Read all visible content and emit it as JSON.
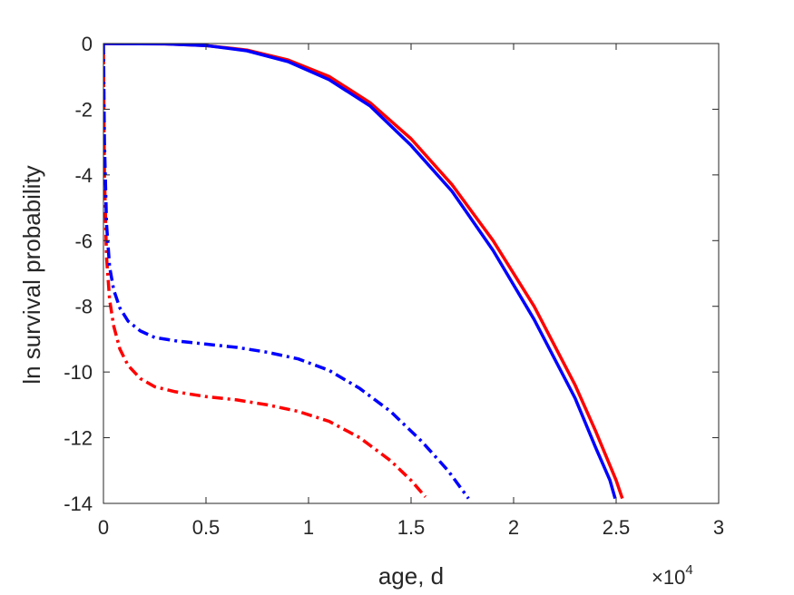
{
  "chart_data": {
    "type": "line",
    "xlabel": "age, d",
    "ylabel": "ln survival probability",
    "x_exponent_label": "×10",
    "x_exponent_power": "4",
    "xlim": [
      0,
      30000
    ],
    "ylim": [
      -14,
      0
    ],
    "x_tick_values": [
      0,
      5000,
      10000,
      15000,
      20000,
      25000,
      30000
    ],
    "x_tick_labels": [
      "0",
      "0.5",
      "1",
      "1.5",
      "2",
      "2.5",
      "3"
    ],
    "y_tick_values": [
      0,
      -2,
      -4,
      -6,
      -8,
      -10,
      -12,
      -14
    ],
    "y_tick_labels": [
      "0",
      "-2",
      "-4",
      "-6",
      "-8",
      "-10",
      "-12",
      "-14"
    ],
    "grid": false,
    "series": [
      {
        "color": "#ff0000",
        "style": "solid",
        "x": [
          0,
          3000,
          5000,
          7000,
          9000,
          11000,
          13000,
          15000,
          17000,
          19000,
          21000,
          23000,
          24000,
          25000,
          25300
        ],
        "y": [
          0,
          -0.01,
          -0.06,
          -0.2,
          -0.5,
          -1.0,
          -1.8,
          -2.9,
          -4.3,
          -6.0,
          -8.0,
          -10.4,
          -11.8,
          -13.3,
          -13.85
        ]
      },
      {
        "color": "#0000ff",
        "style": "solid",
        "x": [
          0,
          3000,
          5000,
          7000,
          9000,
          11000,
          13000,
          15000,
          17000,
          19000,
          21000,
          23000,
          24000,
          24700,
          24950
        ],
        "y": [
          0,
          -0.01,
          -0.06,
          -0.22,
          -0.55,
          -1.1,
          -1.9,
          -3.1,
          -4.5,
          -6.3,
          -8.4,
          -10.8,
          -12.3,
          -13.3,
          -13.85
        ]
      },
      {
        "color": "#ff0000",
        "style": "dashdot",
        "x": [
          0,
          50,
          150,
          300,
          500,
          800,
          1200,
          1800,
          2500,
          3500,
          5000,
          6500,
          8000,
          9500,
          11000,
          12500,
          14000,
          15000,
          15700
        ],
        "y": [
          -0.3,
          -4.0,
          -6.5,
          -7.8,
          -8.6,
          -9.3,
          -9.8,
          -10.2,
          -10.45,
          -10.6,
          -10.75,
          -10.85,
          -11.0,
          -11.2,
          -11.5,
          -12.0,
          -12.7,
          -13.3,
          -13.8
        ]
      },
      {
        "color": "#0000ff",
        "style": "dashdot",
        "x": [
          0,
          50,
          150,
          300,
          500,
          800,
          1200,
          1800,
          2500,
          3500,
          5000,
          6500,
          8000,
          9500,
          11000,
          12500,
          14000,
          15500,
          16800,
          17800
        ],
        "y": [
          0,
          -3.0,
          -5.5,
          -6.8,
          -7.5,
          -8.05,
          -8.45,
          -8.75,
          -8.95,
          -9.05,
          -9.15,
          -9.25,
          -9.4,
          -9.6,
          -9.95,
          -10.5,
          -11.2,
          -12.1,
          -13.0,
          -13.85
        ]
      }
    ]
  }
}
